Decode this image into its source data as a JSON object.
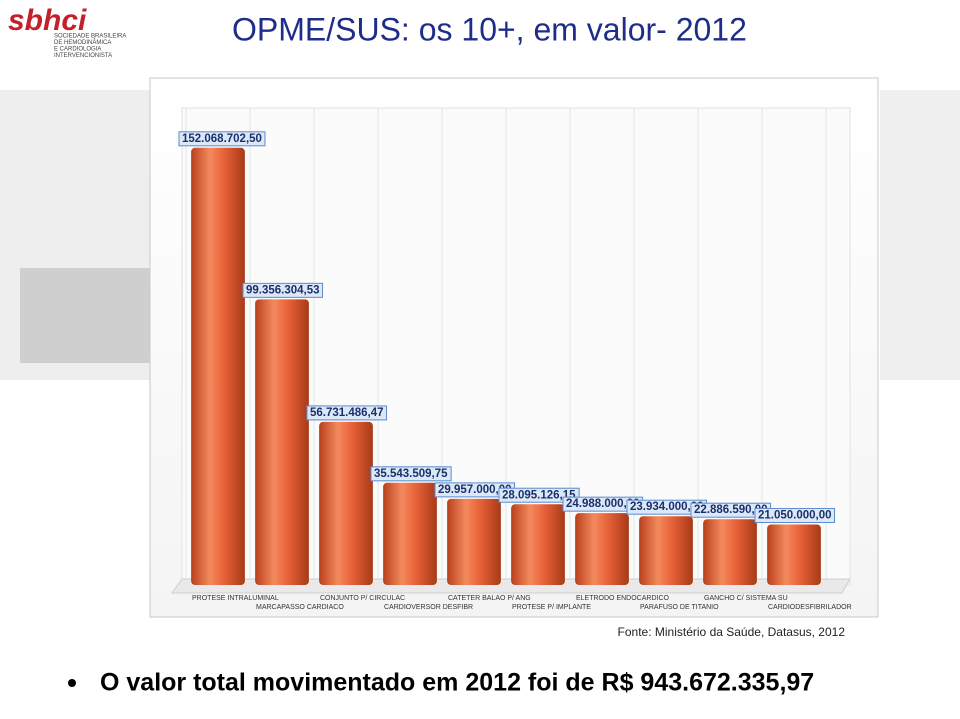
{
  "header": {
    "title": "OPME/SUS: os 10+, em valor- 2012"
  },
  "logo": {
    "name": "sbhci",
    "lines": [
      "SOCIEDADE BRASILEIRA",
      "DE HEMODINÂMICA",
      "E CARDIOLOGIA",
      "INTERVENCIONISTA"
    ]
  },
  "chart_data": {
    "type": "bar",
    "categories": [
      "PROTESE INTRALUMINAL",
      "MARCAPASSO CARDIACO",
      "CONJUNTO P/ CIRCULAC",
      "CARDIOVERSOR DESFIBR",
      "CATETER BALAO P/ ANG",
      "PROTESE P/ IMPLANTE",
      "ELETRODO ENDOCARDICO",
      "PARAFUSO DE TITANIO",
      "GANCHO C/ SISTEMA SU",
      "CARDIODESFIBRILADOR"
    ],
    "values": [
      152068702.5,
      99356304.53,
      56731486.47,
      35543509.75,
      29957000.0,
      28095126.15,
      24988000.0,
      23934000.0,
      22886590.0,
      21050000.0
    ],
    "value_labels": [
      "152.068.702,50",
      "99.356.304,53",
      "56.731.486,47",
      "35.543.509,75",
      "29.957.000,00",
      "28.095.126,15",
      "24.988.000,00",
      "23.934.000,00",
      "22.886.590,00",
      "21.050.000,00"
    ],
    "color": "#e8633a",
    "ylim": [
      0,
      160000000
    ],
    "grid": true
  },
  "source": "Fonte: Ministério da Saúde, Datasus, 2012",
  "bullet": "O valor total movimentado em 2012 foi de R$ 943.672.335,97"
}
